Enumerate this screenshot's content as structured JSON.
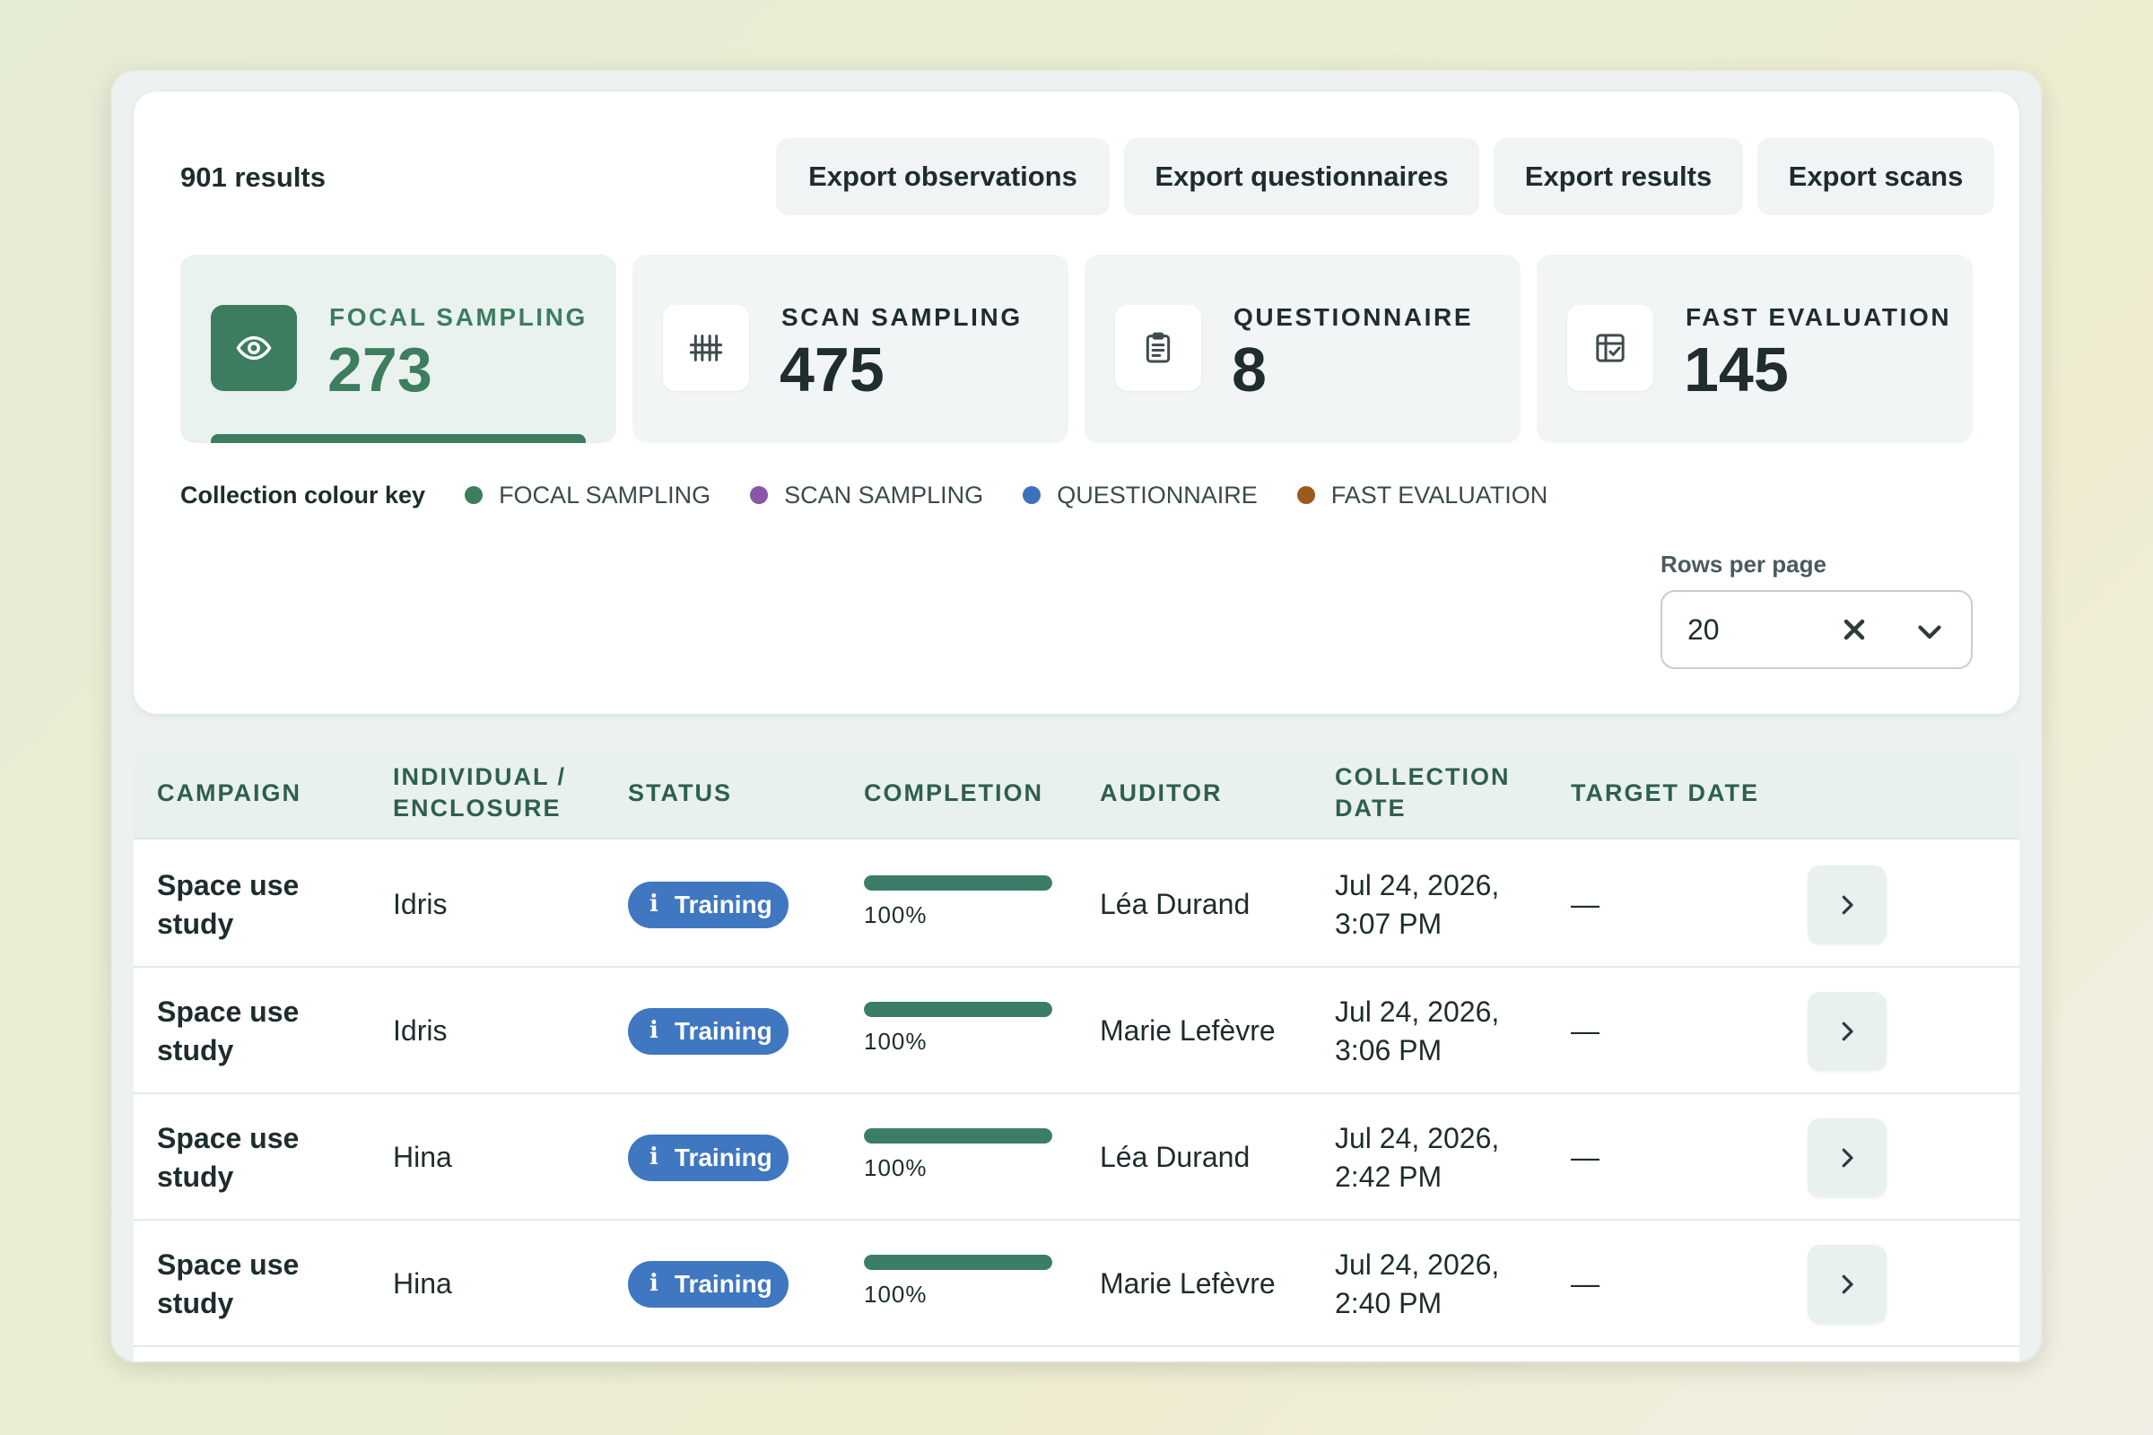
{
  "header": {
    "results_count": "901 results",
    "exports": [
      "Export observations",
      "Export questionnaires",
      "Export results",
      "Export scans"
    ]
  },
  "stats": [
    {
      "label": "FOCAL SAMPLING",
      "value": "273",
      "icon": "eye-icon",
      "active": true
    },
    {
      "label": "SCAN SAMPLING",
      "value": "475",
      "icon": "grid-tally-icon",
      "active": false
    },
    {
      "label": "QUESTIONNAIRE",
      "value": "8",
      "icon": "clipboard-icon",
      "active": false
    },
    {
      "label": "FAST EVALUATION",
      "value": "145",
      "icon": "checklist-table-icon",
      "active": false
    }
  ],
  "colour_key": {
    "title": "Collection colour key",
    "items": [
      {
        "label": "FOCAL SAMPLING",
        "color": "#3e7d60"
      },
      {
        "label": "SCAN SAMPLING",
        "color": "#8a56a8"
      },
      {
        "label": "QUESTIONNAIRE",
        "color": "#3e71bd"
      },
      {
        "label": "FAST EVALUATION",
        "color": "#9c5a1e"
      }
    ]
  },
  "rows_per_page": {
    "label": "Rows per page",
    "value": "20"
  },
  "table": {
    "columns": [
      "CAMPAIGN",
      "INDIVIDUAL / ENCLOSURE",
      "STATUS",
      "COMPLETION",
      "AUDITOR",
      "COLLECTION DATE",
      "TARGET DATE"
    ],
    "rows": [
      {
        "campaign": "Space use study",
        "individual": "Idris",
        "status": "Training",
        "completion": 1.0,
        "completion_label": "100%",
        "auditor": "Léa Durand",
        "date": "Jul 24, 2026, 3:07 PM",
        "target": "—"
      },
      {
        "campaign": "Space use study",
        "individual": "Idris",
        "status": "Training",
        "completion": 1.0,
        "completion_label": "100%",
        "auditor": "Marie Lefèvre",
        "date": "Jul 24, 2026, 3:06 PM",
        "target": "—"
      },
      {
        "campaign": "Space use study",
        "individual": "Hina",
        "status": "Training",
        "completion": 1.0,
        "completion_label": "100%",
        "auditor": "Léa Durand",
        "date": "Jul 24, 2026, 2:42 PM",
        "target": "—"
      },
      {
        "campaign": "Space use study",
        "individual": "Hina",
        "status": "Training",
        "completion": 1.0,
        "completion_label": "100%",
        "auditor": "Marie Lefèvre",
        "date": "Jul 24, 2026, 2:40 PM",
        "target": "—"
      }
    ]
  }
}
